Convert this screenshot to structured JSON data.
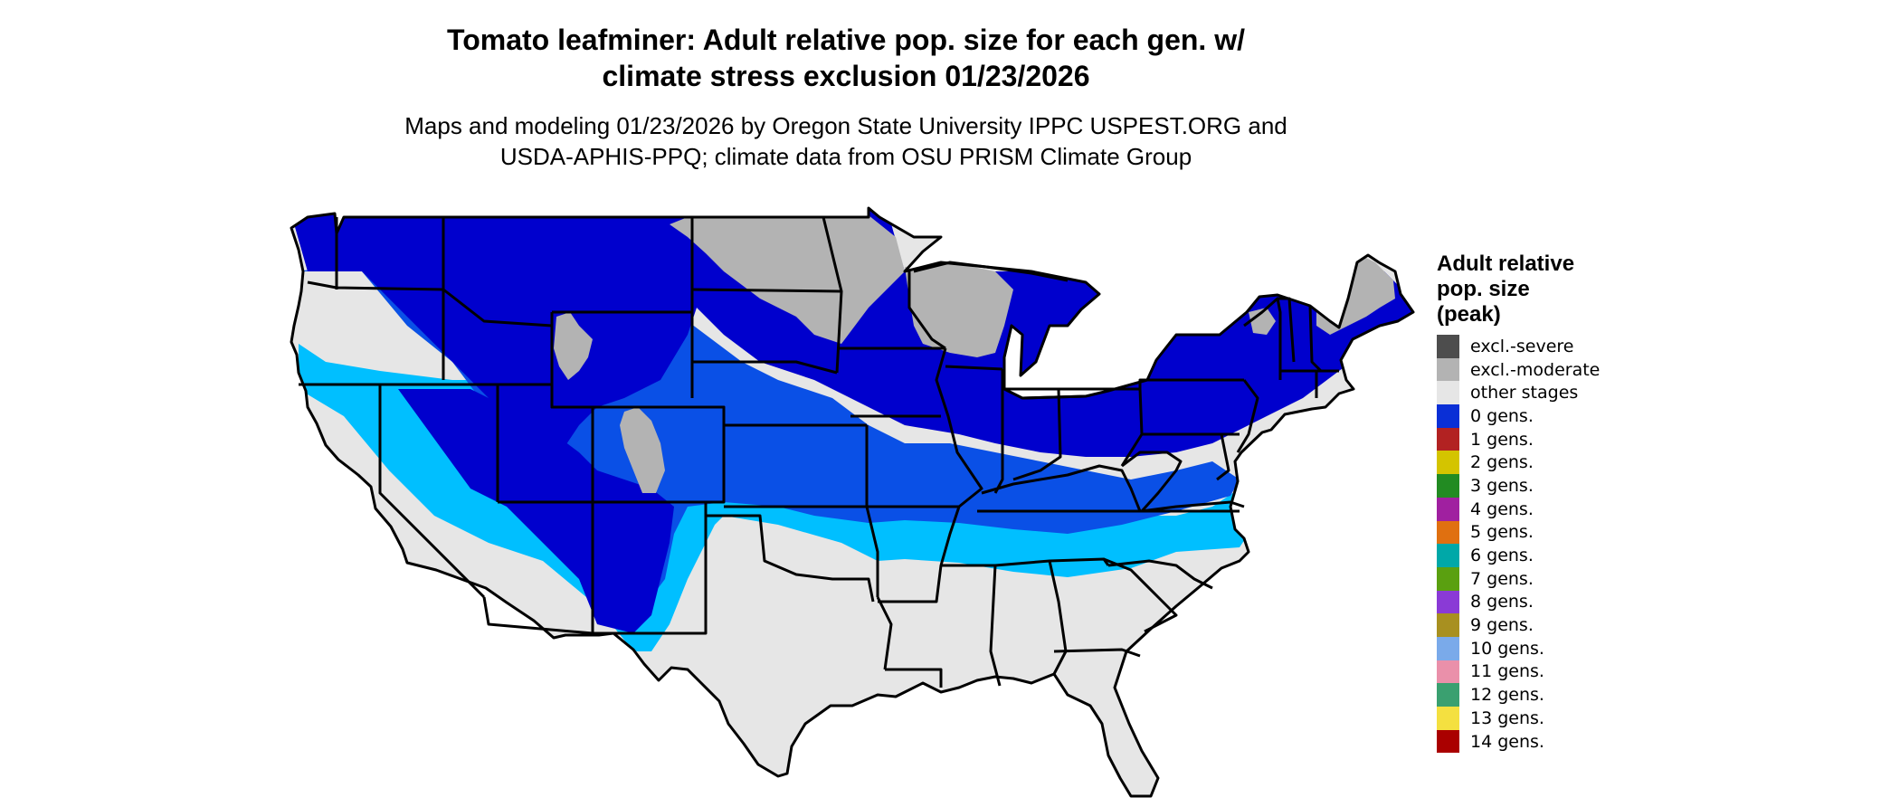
{
  "title": {
    "line1": "Tomato leafminer: Adult relative pop. size for each gen. w/",
    "line2": "climate stress exclusion 01/23/2026"
  },
  "subtitle": {
    "line1": "Maps and modeling 01/23/2026 by Oregon State University IPPC USPEST.ORG and",
    "line2": "USDA-APHIS-PPQ; climate data from OSU PRISM Climate Group"
  },
  "legend": {
    "title_lines": [
      "Adult relative",
      "pop. size",
      "(peak)"
    ],
    "items": [
      {
        "label": "excl.-severe",
        "color": "#4d4d4d"
      },
      {
        "label": "excl.-moderate",
        "color": "#b3b3b3"
      },
      {
        "label": "other stages",
        "color": "#e6e6e6"
      },
      {
        "label": "0 gens.",
        "color": "#0a2fd6"
      },
      {
        "label": "1 gens.",
        "color": "#b22222"
      },
      {
        "label": "2 gens.",
        "color": "#d4c400"
      },
      {
        "label": "3 gens.",
        "color": "#228b22"
      },
      {
        "label": "4 gens.",
        "color": "#a020a0"
      },
      {
        "label": "5 gens.",
        "color": "#e07010"
      },
      {
        "label": "6 gens.",
        "color": "#00a8a8"
      },
      {
        "label": "7 gens.",
        "color": "#5aa010"
      },
      {
        "label": "8 gens.",
        "color": "#8a3ad6"
      },
      {
        "label": "9 gens.",
        "color": "#a89020"
      },
      {
        "label": "10 gens.",
        "color": "#7aaaea"
      },
      {
        "label": "11 gens.",
        "color": "#ea90aa"
      },
      {
        "label": "12 gens.",
        "color": "#3aa070"
      },
      {
        "label": "13 gens.",
        "color": "#f4e040"
      },
      {
        "label": "14 gens.",
        "color": "#aa0000"
      }
    ]
  },
  "map_colors": {
    "deep_blue": "#0000cd",
    "mid_blue": "#0a50e6",
    "light_blue": "#1e90ff",
    "cyan": "#00bfff",
    "gray": "#b3b3b3",
    "light_gray": "#e6e6e6",
    "border": "#000000"
  }
}
